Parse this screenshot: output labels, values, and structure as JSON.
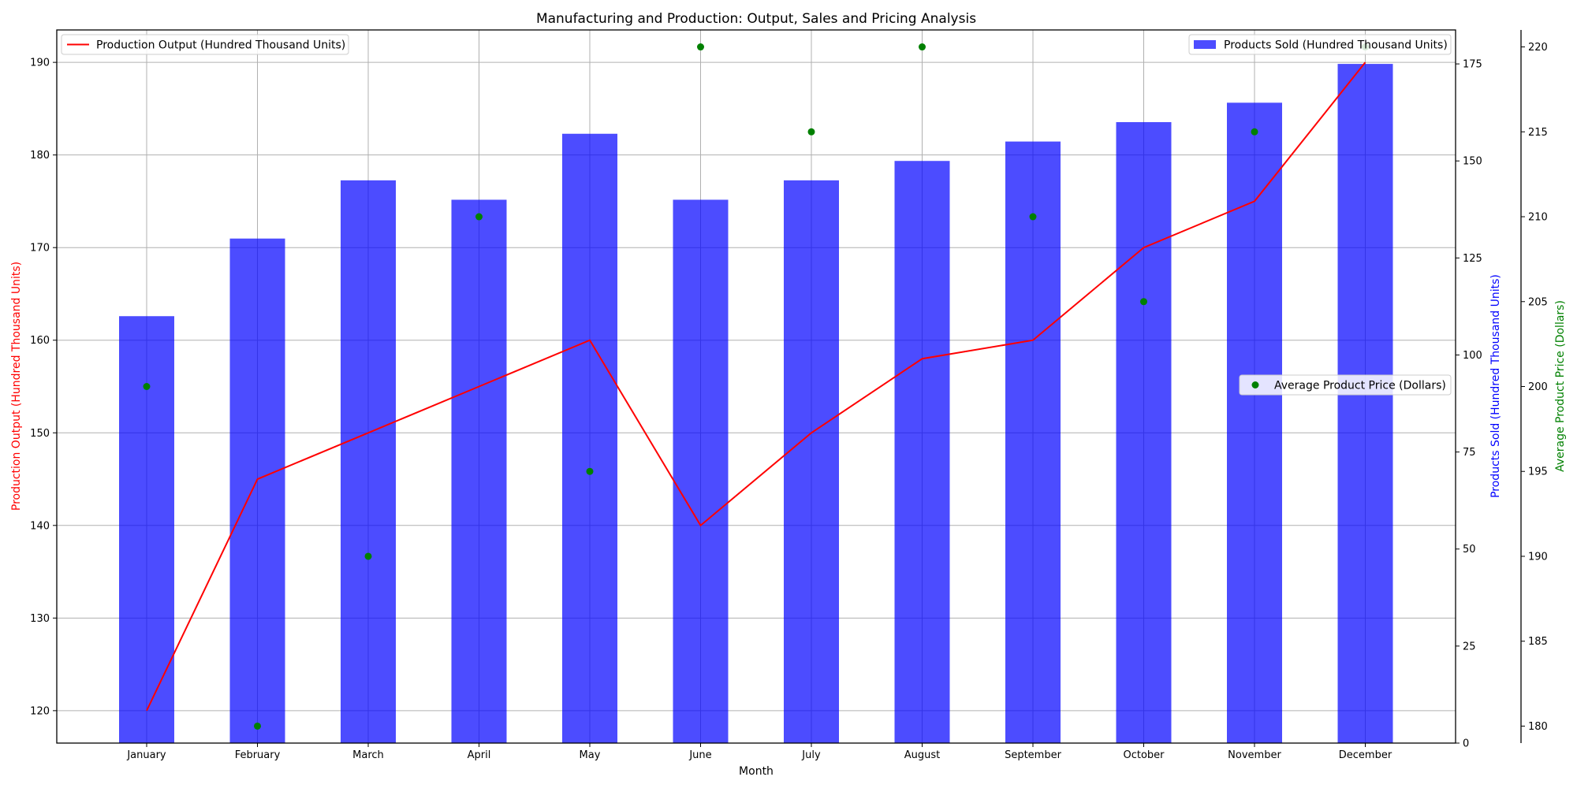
{
  "chart_data": {
    "type": "bar",
    "title": "Manufacturing and Production: Output, Sales and Pricing Analysis",
    "xlabel": "Month",
    "categories": [
      "January",
      "February",
      "March",
      "April",
      "May",
      "June",
      "July",
      "August",
      "September",
      "October",
      "November",
      "December"
    ],
    "grid": true,
    "series": [
      {
        "name": "Production Output (Hundred Thousand Units)",
        "kind": "line",
        "axis": "left",
        "color": "#ff0000",
        "values": [
          120,
          145,
          150,
          155,
          160,
          140,
          150,
          158,
          160,
          170,
          175,
          190
        ]
      },
      {
        "name": "Products Sold (Hundred Thousand Units)",
        "kind": "bar",
        "axis": "right",
        "color": "#0000ff",
        "values": [
          110,
          130,
          145,
          140,
          157,
          140,
          145,
          150,
          155,
          160,
          165,
          175
        ]
      },
      {
        "name": "Average Product Price (Dollars)",
        "kind": "scatter",
        "axis": "far-right",
        "color": "#008000",
        "values": [
          200,
          180,
          190,
          210,
          195,
          220,
          215,
          220,
          210,
          205,
          215,
          220
        ]
      }
    ],
    "axes": {
      "left": {
        "label": "Production Output (Hundred Thousand Units)",
        "color": "#ff0000",
        "ylim": [
          116.5,
          193.5
        ],
        "ticks": [
          120,
          130,
          140,
          150,
          160,
          170,
          180,
          190
        ]
      },
      "right": {
        "label": "Products Sold (Hundred Thousand Units)",
        "color": "#0000ff",
        "ylim": [
          0,
          183.75
        ],
        "ticks": [
          0,
          25,
          50,
          75,
          100,
          125,
          150,
          175
        ]
      },
      "far_right": {
        "label": "Average Product Price (Dollars)",
        "color": "#008000",
        "ylim": [
          179,
          221
        ],
        "ticks": [
          180,
          185,
          190,
          195,
          200,
          205,
          210,
          215,
          220
        ]
      }
    },
    "legends": [
      {
        "series": 0,
        "placement": "top-left"
      },
      {
        "series": 1,
        "placement": "top-right"
      },
      {
        "series": 2,
        "placement": "center-right"
      }
    ]
  }
}
